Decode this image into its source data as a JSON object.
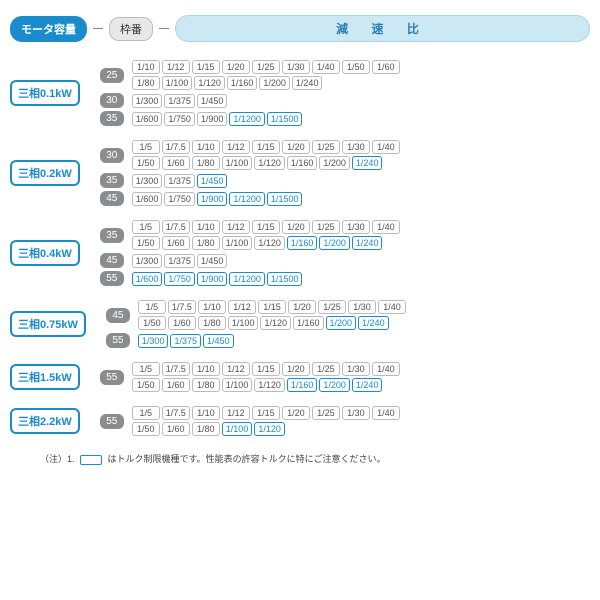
{
  "header": {
    "motor_capacity": "モータ容量",
    "frame_no": "枠番",
    "reduction_ratio": "減 速 比"
  },
  "colors": {
    "accent": "#1a8ccc",
    "frame_bg": "#8a8d90",
    "ratio_header_bg": "#cde8f5",
    "border_gray": "#bbbbbb"
  },
  "groups": [
    {
      "motor": "三相0.1kW",
      "frames": [
        {
          "frame": "25",
          "rows": [
            [
              {
                "v": "1/10",
                "h": 0
              },
              {
                "v": "1/12",
                "h": 0
              },
              {
                "v": "1/15",
                "h": 0
              },
              {
                "v": "1/20",
                "h": 0
              },
              {
                "v": "1/25",
                "h": 0
              },
              {
                "v": "1/30",
                "h": 0
              },
              {
                "v": "1/40",
                "h": 0
              },
              {
                "v": "1/50",
                "h": 0
              },
              {
                "v": "1/60",
                "h": 0
              }
            ],
            [
              {
                "v": "1/80",
                "h": 0
              },
              {
                "v": "1/100",
                "h": 0
              },
              {
                "v": "1/120",
                "h": 0
              },
              {
                "v": "1/160",
                "h": 0
              },
              {
                "v": "1/200",
                "h": 0
              },
              {
                "v": "1/240",
                "h": 0
              }
            ]
          ]
        },
        {
          "frame": "30",
          "rows": [
            [
              {
                "v": "1/300",
                "h": 0
              },
              {
                "v": "1/375",
                "h": 0
              },
              {
                "v": "1/450",
                "h": 0
              }
            ]
          ]
        },
        {
          "frame": "35",
          "rows": [
            [
              {
                "v": "1/600",
                "h": 0
              },
              {
                "v": "1/750",
                "h": 0
              },
              {
                "v": "1/900",
                "h": 0
              },
              {
                "v": "1/1200",
                "h": 1
              },
              {
                "v": "1/1500",
                "h": 1
              }
            ]
          ]
        }
      ]
    },
    {
      "motor": "三相0.2kW",
      "frames": [
        {
          "frame": "30",
          "rows": [
            [
              {
                "v": "1/5",
                "h": 0
              },
              {
                "v": "1/7.5",
                "h": 0
              },
              {
                "v": "1/10",
                "h": 0
              },
              {
                "v": "1/12",
                "h": 0
              },
              {
                "v": "1/15",
                "h": 0
              },
              {
                "v": "1/20",
                "h": 0
              },
              {
                "v": "1/25",
                "h": 0
              },
              {
                "v": "1/30",
                "h": 0
              },
              {
                "v": "1/40",
                "h": 0
              }
            ],
            [
              {
                "v": "1/50",
                "h": 0
              },
              {
                "v": "1/60",
                "h": 0
              },
              {
                "v": "1/80",
                "h": 0
              },
              {
                "v": "1/100",
                "h": 0
              },
              {
                "v": "1/120",
                "h": 0
              },
              {
                "v": "1/160",
                "h": 0
              },
              {
                "v": "1/200",
                "h": 0
              },
              {
                "v": "1/240",
                "h": 1
              }
            ]
          ]
        },
        {
          "frame": "35",
          "rows": [
            [
              {
                "v": "1/300",
                "h": 0
              },
              {
                "v": "1/375",
                "h": 0
              },
              {
                "v": "1/450",
                "h": 1
              }
            ]
          ]
        },
        {
          "frame": "45",
          "rows": [
            [
              {
                "v": "1/600",
                "h": 0
              },
              {
                "v": "1/750",
                "h": 0
              },
              {
                "v": "1/900",
                "h": 1
              },
              {
                "v": "1/1200",
                "h": 1
              },
              {
                "v": "1/1500",
                "h": 1
              }
            ]
          ]
        }
      ]
    },
    {
      "motor": "三相0.4kW",
      "frames": [
        {
          "frame": "35",
          "rows": [
            [
              {
                "v": "1/5",
                "h": 0
              },
              {
                "v": "1/7.5",
                "h": 0
              },
              {
                "v": "1/10",
                "h": 0
              },
              {
                "v": "1/12",
                "h": 0
              },
              {
                "v": "1/15",
                "h": 0
              },
              {
                "v": "1/20",
                "h": 0
              },
              {
                "v": "1/25",
                "h": 0
              },
              {
                "v": "1/30",
                "h": 0
              },
              {
                "v": "1/40",
                "h": 0
              }
            ],
            [
              {
                "v": "1/50",
                "h": 0
              },
              {
                "v": "1/60",
                "h": 0
              },
              {
                "v": "1/80",
                "h": 0
              },
              {
                "v": "1/100",
                "h": 0
              },
              {
                "v": "1/120",
                "h": 0
              },
              {
                "v": "1/160",
                "h": 1
              },
              {
                "v": "1/200",
                "h": 1
              },
              {
                "v": "1/240",
                "h": 1
              }
            ]
          ]
        },
        {
          "frame": "45",
          "rows": [
            [
              {
                "v": "1/300",
                "h": 0
              },
              {
                "v": "1/375",
                "h": 0
              },
              {
                "v": "1/450",
                "h": 0
              }
            ]
          ]
        },
        {
          "frame": "55",
          "rows": [
            [
              {
                "v": "1/600",
                "h": 1
              },
              {
                "v": "1/750",
                "h": 1
              },
              {
                "v": "1/900",
                "h": 1
              },
              {
                "v": "1/1200",
                "h": 1
              },
              {
                "v": "1/1500",
                "h": 1
              }
            ]
          ]
        }
      ]
    },
    {
      "motor": "三相0.75kW",
      "frames": [
        {
          "frame": "45",
          "rows": [
            [
              {
                "v": "1/5",
                "h": 0
              },
              {
                "v": "1/7.5",
                "h": 0
              },
              {
                "v": "1/10",
                "h": 0
              },
              {
                "v": "1/12",
                "h": 0
              },
              {
                "v": "1/15",
                "h": 0
              },
              {
                "v": "1/20",
                "h": 0
              },
              {
                "v": "1/25",
                "h": 0
              },
              {
                "v": "1/30",
                "h": 0
              },
              {
                "v": "1/40",
                "h": 0
              }
            ],
            [
              {
                "v": "1/50",
                "h": 0
              },
              {
                "v": "1/60",
                "h": 0
              },
              {
                "v": "1/80",
                "h": 0
              },
              {
                "v": "1/100",
                "h": 0
              },
              {
                "v": "1/120",
                "h": 0
              },
              {
                "v": "1/160",
                "h": 0
              },
              {
                "v": "1/200",
                "h": 1
              },
              {
                "v": "1/240",
                "h": 1
              }
            ]
          ]
        },
        {
          "frame": "55",
          "rows": [
            [
              {
                "v": "1/300",
                "h": 1
              },
              {
                "v": "1/375",
                "h": 1
              },
              {
                "v": "1/450",
                "h": 1
              }
            ]
          ]
        }
      ]
    },
    {
      "motor": "三相1.5kW",
      "frames": [
        {
          "frame": "55",
          "rows": [
            [
              {
                "v": "1/5",
                "h": 0
              },
              {
                "v": "1/7.5",
                "h": 0
              },
              {
                "v": "1/10",
                "h": 0
              },
              {
                "v": "1/12",
                "h": 0
              },
              {
                "v": "1/15",
                "h": 0
              },
              {
                "v": "1/20",
                "h": 0
              },
              {
                "v": "1/25",
                "h": 0
              },
              {
                "v": "1/30",
                "h": 0
              },
              {
                "v": "1/40",
                "h": 0
              }
            ],
            [
              {
                "v": "1/50",
                "h": 0
              },
              {
                "v": "1/60",
                "h": 0
              },
              {
                "v": "1/80",
                "h": 0
              },
              {
                "v": "1/100",
                "h": 0
              },
              {
                "v": "1/120",
                "h": 0
              },
              {
                "v": "1/160",
                "h": 1
              },
              {
                "v": "1/200",
                "h": 1
              },
              {
                "v": "1/240",
                "h": 1
              }
            ]
          ]
        }
      ]
    },
    {
      "motor": "三相2.2kW",
      "frames": [
        {
          "frame": "55",
          "rows": [
            [
              {
                "v": "1/5",
                "h": 0
              },
              {
                "v": "1/7.5",
                "h": 0
              },
              {
                "v": "1/10",
                "h": 0
              },
              {
                "v": "1/12",
                "h": 0
              },
              {
                "v": "1/15",
                "h": 0
              },
              {
                "v": "1/20",
                "h": 0
              },
              {
                "v": "1/25",
                "h": 0
              },
              {
                "v": "1/30",
                "h": 0
              },
              {
                "v": "1/40",
                "h": 0
              }
            ],
            [
              {
                "v": "1/50",
                "h": 0
              },
              {
                "v": "1/60",
                "h": 0
              },
              {
                "v": "1/80",
                "h": 0
              },
              {
                "v": "1/100",
                "h": 1
              },
              {
                "v": "1/120",
                "h": 1
              }
            ]
          ]
        }
      ]
    }
  ],
  "footnote": {
    "prefix": "（注）1.",
    "text": "はトルク制限機種です。性能表の許容トルクに特にご注意ください。"
  }
}
